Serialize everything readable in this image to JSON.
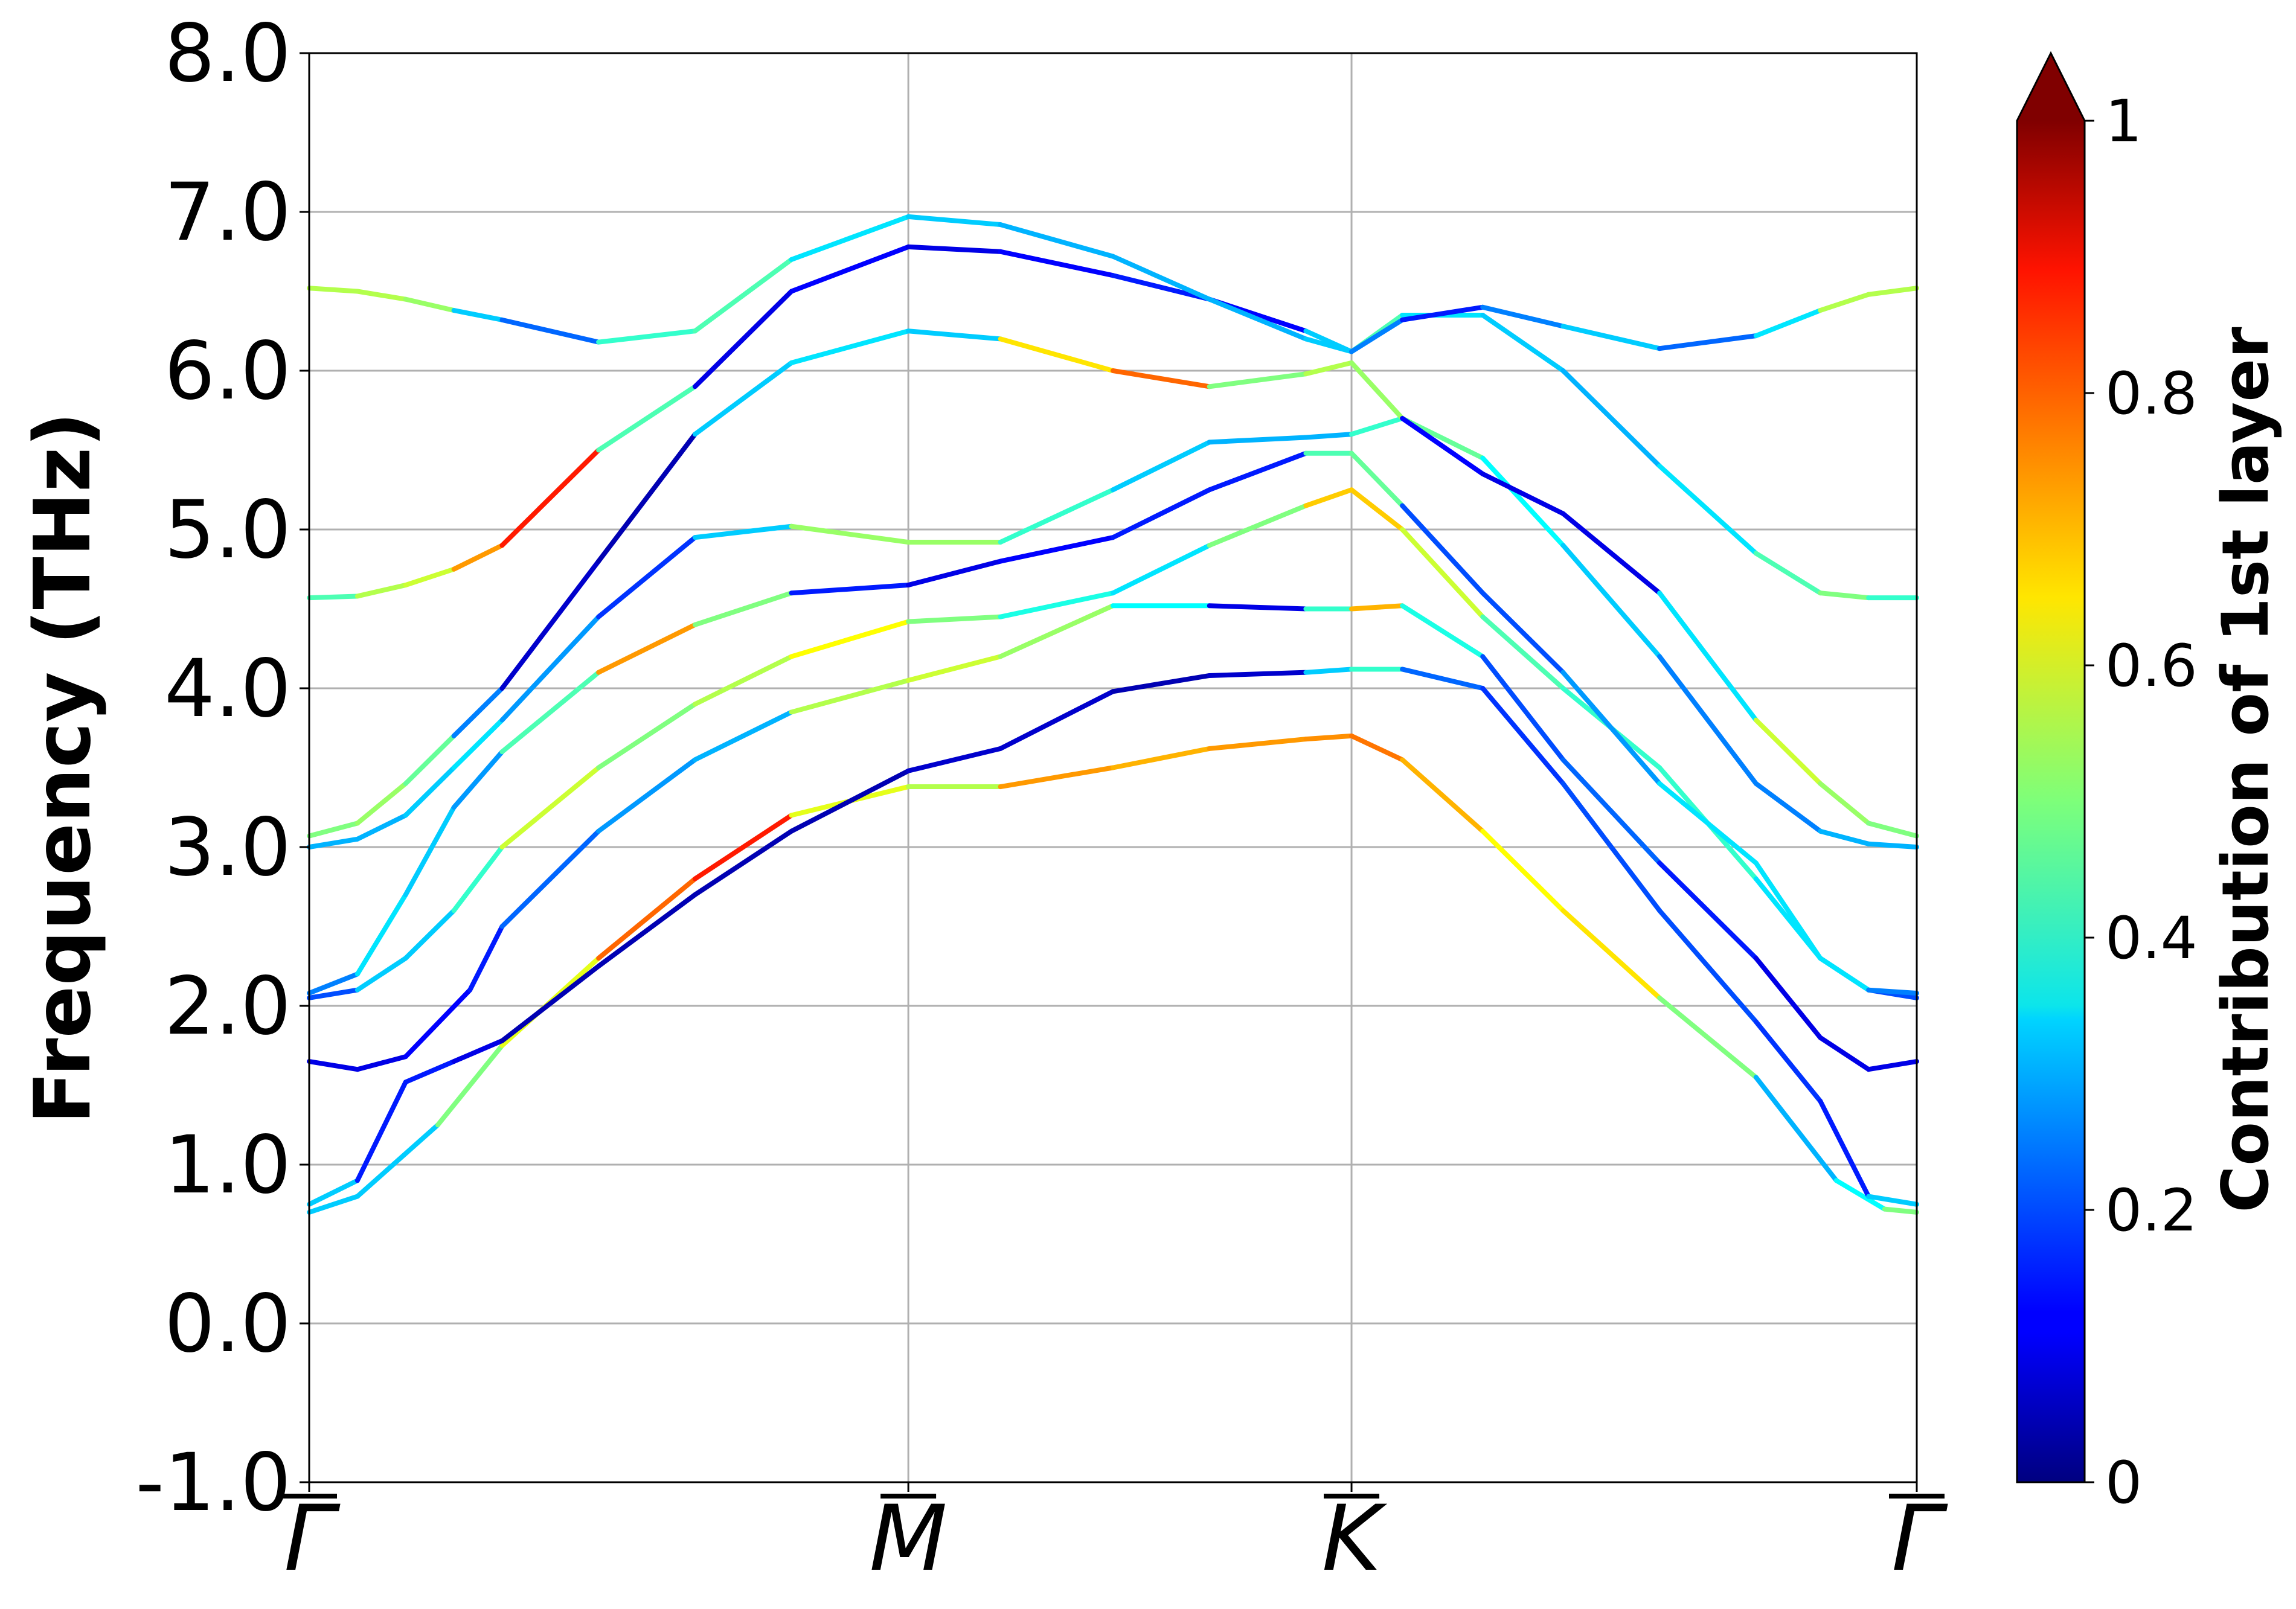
{
  "chart_data": {
    "type": "line",
    "title": "",
    "xlabel": "",
    "ylabel": "Frequency (THz)",
    "ylim": [
      -1.0,
      8.0
    ],
    "xlim": [
      0,
      1
    ],
    "grid": true,
    "yticks": [
      "-1.0",
      "0.0",
      "1.0",
      "2.0",
      "3.0",
      "4.0",
      "5.0",
      "6.0",
      "7.0",
      "8.0"
    ],
    "high_symmetry_points": [
      {
        "label": "Γ",
        "x": 0.0
      },
      {
        "label": "M",
        "x": 0.3727
      },
      {
        "label": "K",
        "x": 0.6484
      },
      {
        "label": "Γ",
        "x": 1.0
      }
    ],
    "colorbar": {
      "label": "Contribution of 1st layer",
      "ticks": [
        "0",
        "0.2",
        "0.4",
        "0.6",
        "0.8",
        "1"
      ],
      "tick_values": [
        0,
        0.2,
        0.4,
        0.6,
        0.8,
        1.0
      ],
      "colormap": "jet",
      "extend": "max"
    },
    "series": [
      {
        "name": "band 1",
        "x": [
          0.0,
          0.03,
          0.08,
          0.12,
          0.18,
          0.24,
          0.3,
          0.3727,
          0.43,
          0.5,
          0.56,
          0.62,
          0.6484,
          0.68,
          0.73,
          0.78,
          0.84,
          0.9,
          0.95,
          0.98,
          1.0
        ],
        "y": [
          0.7,
          0.8,
          1.25,
          1.75,
          2.3,
          2.8,
          3.2,
          3.38,
          3.38,
          3.5,
          3.62,
          3.68,
          3.7,
          3.55,
          3.1,
          2.6,
          2.05,
          1.55,
          0.9,
          0.72,
          0.7
        ],
        "c": [
          0.5,
          0.15,
          0.5,
          0.5,
          0.7,
          0.85,
          0.85,
          0.35,
          0.75,
          0.7,
          0.7,
          0.75,
          0.72,
          0.8,
          0.6,
          0.65,
          0.65,
          0.35,
          0.25,
          0.5,
          0.5
        ]
      },
      {
        "name": "band 2",
        "x": [
          0.0,
          0.03,
          0.06,
          0.09,
          0.12,
          0.18,
          0.24,
          0.3,
          0.3727,
          0.43,
          0.5,
          0.56,
          0.62,
          0.6484,
          0.68,
          0.73,
          0.78,
          0.84,
          0.9,
          0.94,
          0.97,
          1.0
        ],
        "y": [
          0.75,
          0.9,
          1.52,
          1.65,
          1.78,
          2.25,
          2.7,
          3.1,
          3.48,
          3.62,
          3.98,
          4.08,
          4.1,
          4.12,
          4.12,
          4.0,
          3.4,
          2.6,
          1.9,
          1.4,
          0.8,
          0.75
        ],
        "c": [
          0.5,
          0.15,
          0.15,
          0.15,
          0.05,
          0.05,
          0.05,
          0.05,
          0.05,
          0.1,
          0.05,
          0.05,
          0.1,
          0.55,
          0.3,
          0.15,
          0.2,
          0.2,
          0.2,
          0.15,
          0.15,
          0.5
        ]
      },
      {
        "name": "band 3",
        "x": [
          0.0,
          0.03,
          0.06,
          0.1,
          0.12,
          0.18,
          0.24,
          0.3,
          0.3727,
          0.43,
          0.5,
          0.56,
          0.62,
          0.6484,
          0.68,
          0.73,
          0.78,
          0.84,
          0.9,
          0.94,
          0.97,
          1.0
        ],
        "y": [
          1.65,
          1.6,
          1.68,
          2.1,
          2.5,
          3.1,
          3.55,
          3.85,
          4.05,
          4.2,
          4.52,
          4.52,
          4.5,
          4.5,
          4.52,
          4.2,
          3.55,
          2.9,
          2.3,
          1.8,
          1.6,
          1.65
        ],
        "c": [
          0.1,
          0.1,
          0.1,
          0.15,
          0.15,
          0.3,
          0.25,
          0.35,
          0.75,
          0.4,
          0.65,
          0.1,
          0.1,
          0.75,
          0.65,
          0.15,
          0.25,
          0.2,
          0.1,
          0.1,
          0.1,
          0.1
        ]
      },
      {
        "name": "band 4",
        "x": [
          0.0,
          0.03,
          0.06,
          0.09,
          0.12,
          0.18,
          0.24,
          0.3,
          0.3727,
          0.43,
          0.5,
          0.56,
          0.62,
          0.6484,
          0.68,
          0.73,
          0.78,
          0.84,
          0.9,
          0.94,
          0.97,
          1.0
        ],
        "y": [
          2.05,
          2.1,
          2.3,
          2.6,
          3.0,
          3.5,
          3.9,
          4.2,
          4.42,
          4.45,
          4.6,
          4.9,
          5.15,
          5.25,
          5.0,
          4.45,
          4.0,
          3.5,
          2.8,
          2.3,
          2.1,
          2.05
        ],
        "c": [
          0.1,
          0.3,
          0.35,
          0.3,
          0.55,
          0.6,
          0.4,
          0.7,
          0.55,
          0.45,
          0.35,
          0.35,
          0.65,
          0.7,
          0.65,
          0.5,
          0.4,
          0.45,
          0.4,
          0.3,
          0.3,
          0.1
        ]
      },
      {
        "name": "band 5",
        "x": [
          0.0,
          0.03,
          0.06,
          0.09,
          0.12,
          0.18,
          0.24,
          0.3,
          0.3727,
          0.43,
          0.5,
          0.56,
          0.62,
          0.6484,
          0.68,
          0.73,
          0.78,
          0.84,
          0.9,
          0.94,
          0.97,
          1.0
        ],
        "y": [
          2.08,
          2.2,
          2.7,
          3.25,
          3.6,
          4.1,
          4.4,
          4.6,
          4.65,
          4.8,
          4.95,
          5.25,
          5.48,
          5.48,
          5.15,
          4.6,
          4.1,
          3.4,
          2.9,
          2.3,
          2.1,
          2.08
        ],
        "c": [
          0.15,
          0.35,
          0.35,
          0.3,
          0.25,
          0.65,
          0.8,
          0.2,
          0.1,
          0.1,
          0.15,
          0.15,
          0.15,
          0.75,
          0.2,
          0.2,
          0.2,
          0.35,
          0.35,
          0.35,
          0.35,
          0.15
        ]
      },
      {
        "name": "band 6",
        "x": [
          0.0,
          0.03,
          0.06,
          0.09,
          0.12,
          0.18,
          0.24,
          0.3,
          0.3727,
          0.43,
          0.5,
          0.56,
          0.62,
          0.6484,
          0.68,
          0.73,
          0.78,
          0.84,
          0.9,
          0.94,
          0.97,
          1.0
        ],
        "y": [
          3.0,
          3.05,
          3.2,
          3.5,
          3.8,
          4.45,
          4.95,
          5.02,
          4.92,
          4.92,
          5.25,
          5.55,
          5.58,
          5.6,
          5.7,
          5.45,
          4.9,
          4.2,
          3.4,
          3.1,
          3.02,
          3.0
        ],
        "c": [
          0.3,
          0.3,
          0.3,
          0.35,
          0.35,
          0.2,
          0.15,
          0.5,
          0.55,
          0.5,
          0.35,
          0.3,
          0.3,
          0.3,
          0.55,
          0.4,
          0.35,
          0.3,
          0.2,
          0.3,
          0.3,
          0.3
        ]
      },
      {
        "name": "band 7",
        "x": [
          0.0,
          0.03,
          0.06,
          0.09,
          0.12,
          0.18,
          0.24,
          0.3,
          0.3727,
          0.43,
          0.5,
          0.56,
          0.62,
          0.6484,
          0.68,
          0.73,
          0.78,
          0.84,
          0.9,
          0.94,
          0.97,
          1.0
        ],
        "y": [
          3.07,
          3.15,
          3.4,
          3.7,
          4.0,
          4.8,
          5.6,
          6.05,
          6.25,
          6.2,
          6.0,
          5.9,
          5.98,
          6.05,
          5.7,
          5.35,
          5.1,
          4.6,
          3.8,
          3.4,
          3.15,
          3.07
        ],
        "c": [
          0.5,
          0.5,
          0.55,
          0.4,
          0.1,
          0.05,
          0.05,
          0.6,
          0.1,
          0.55,
          0.75,
          0.8,
          0.2,
          0.9,
          0.15,
          0.1,
          0.1,
          0.1,
          0.6,
          0.55,
          0.5,
          0.5
        ]
      },
      {
        "name": "band 8",
        "x": [
          0.0,
          0.03,
          0.06,
          0.09,
          0.12,
          0.18,
          0.24,
          0.3,
          0.3727,
          0.43,
          0.5,
          0.56,
          0.62,
          0.6484,
          0.68,
          0.73,
          0.78,
          0.84,
          0.9,
          0.94,
          0.97,
          1.0
        ],
        "y": [
          4.57,
          4.58,
          4.65,
          4.75,
          4.9,
          5.5,
          5.9,
          6.5,
          6.78,
          6.75,
          6.6,
          6.45,
          6.25,
          6.12,
          6.35,
          6.35,
          6.0,
          5.4,
          4.85,
          4.6,
          4.57,
          4.57
        ],
        "c": [
          0.35,
          0.55,
          0.55,
          0.6,
          0.85,
          0.85,
          0.05,
          0.15,
          0.1,
          0.1,
          0.15,
          0.15,
          0.1,
          0.55,
          0.35,
          0.35,
          0.3,
          0.3,
          0.4,
          0.5,
          0.5,
          0.35
        ]
      },
      {
        "name": "band 9",
        "x": [
          0.0,
          0.03,
          0.06,
          0.09,
          0.12,
          0.18,
          0.24,
          0.3,
          0.3727,
          0.43,
          0.5,
          0.56,
          0.62,
          0.6484,
          0.68,
          0.73,
          0.78,
          0.84,
          0.9,
          0.94,
          0.97,
          1.0
        ],
        "y": [
          6.52,
          6.5,
          6.45,
          6.38,
          6.32,
          6.18,
          6.25,
          6.7,
          6.97,
          6.92,
          6.72,
          6.45,
          6.2,
          6.12,
          6.32,
          6.4,
          6.28,
          6.14,
          6.22,
          6.38,
          6.48,
          6.52
        ],
        "c": [
          0.55,
          0.55,
          0.55,
          0.5,
          0.15,
          0.3,
          0.55,
          0.35,
          0.35,
          0.3,
          0.3,
          0.3,
          0.3,
          0.35,
          0.15,
          0.15,
          0.35,
          0.3,
          0.15,
          0.55,
          0.55,
          0.55
        ]
      }
    ]
  }
}
